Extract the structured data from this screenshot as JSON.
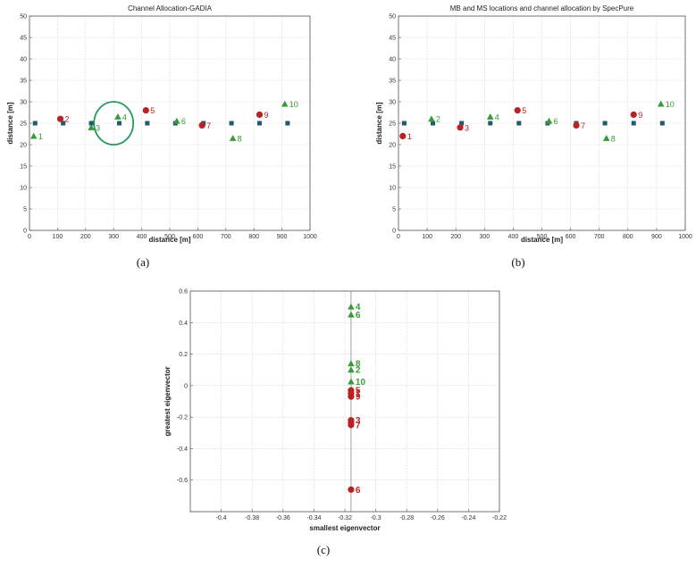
{
  "chart_data": [
    {
      "type": "scatter",
      "panel": "a",
      "caption": "(a)",
      "title": "Channel Allocation-GADIA",
      "xlabel": "distance [m]",
      "ylabel": "distance [m]",
      "xlim": [
        0,
        1000
      ],
      "ylim": [
        0,
        50
      ],
      "xticks": [
        0,
        100,
        200,
        300,
        400,
        500,
        600,
        700,
        800,
        900,
        1000
      ],
      "yticks": [
        0,
        5,
        10,
        15,
        20,
        25,
        30,
        35,
        40,
        45,
        50
      ],
      "grid": true,
      "base_stations": [
        {
          "x": 20,
          "y": 25
        },
        {
          "x": 120,
          "y": 25
        },
        {
          "x": 220,
          "y": 25
        },
        {
          "x": 320,
          "y": 25
        },
        {
          "x": 420,
          "y": 25
        },
        {
          "x": 520,
          "y": 25
        },
        {
          "x": 620,
          "y": 25
        },
        {
          "x": 720,
          "y": 25
        },
        {
          "x": 820,
          "y": 25
        },
        {
          "x": 920,
          "y": 25
        }
      ],
      "mobile_stations": [
        {
          "label": "1",
          "x": 15,
          "y": 22,
          "channel": "green"
        },
        {
          "label": "2",
          "x": 110,
          "y": 26,
          "channel": "red"
        },
        {
          "label": "3",
          "x": 220,
          "y": 24,
          "channel": "green"
        },
        {
          "label": "4",
          "x": 315,
          "y": 26.5,
          "channel": "green"
        },
        {
          "label": "5",
          "x": 415,
          "y": 28,
          "channel": "red"
        },
        {
          "label": "6",
          "x": 525,
          "y": 25.5,
          "channel": "green"
        },
        {
          "label": "7",
          "x": 615,
          "y": 24.5,
          "channel": "red"
        },
        {
          "label": "8",
          "x": 725,
          "y": 21.5,
          "channel": "green"
        },
        {
          "label": "9",
          "x": 820,
          "y": 27,
          "channel": "red"
        },
        {
          "label": "10",
          "x": 910,
          "y": 29.5,
          "channel": "green"
        }
      ],
      "highlight_ellipse": {
        "center_x": 300,
        "center_y": 25,
        "semi_x": 70,
        "semi_y": 5
      }
    },
    {
      "type": "scatter",
      "panel": "b",
      "caption": "(b)",
      "title": "MB and MS locations and channel allocation by SpecPure",
      "xlabel": "distance [m]",
      "ylabel": "distance [m]",
      "xlim": [
        0,
        1000
      ],
      "ylim": [
        0,
        50
      ],
      "xticks": [
        0,
        100,
        200,
        300,
        400,
        500,
        600,
        700,
        800,
        900,
        1000
      ],
      "yticks": [
        0,
        5,
        10,
        15,
        20,
        25,
        30,
        35,
        40,
        45,
        50
      ],
      "grid": true,
      "base_stations": [
        {
          "x": 20,
          "y": 25
        },
        {
          "x": 120,
          "y": 25
        },
        {
          "x": 220,
          "y": 25
        },
        {
          "x": 320,
          "y": 25
        },
        {
          "x": 420,
          "y": 25
        },
        {
          "x": 520,
          "y": 25
        },
        {
          "x": 620,
          "y": 25
        },
        {
          "x": 720,
          "y": 25
        },
        {
          "x": 820,
          "y": 25
        },
        {
          "x": 920,
          "y": 25
        }
      ],
      "mobile_stations": [
        {
          "label": "1",
          "x": 15,
          "y": 22,
          "channel": "red"
        },
        {
          "label": "2",
          "x": 115,
          "y": 26,
          "channel": "green"
        },
        {
          "label": "3",
          "x": 215,
          "y": 24,
          "channel": "red"
        },
        {
          "label": "4",
          "x": 320,
          "y": 26.5,
          "channel": "green"
        },
        {
          "label": "5",
          "x": 415,
          "y": 28,
          "channel": "red"
        },
        {
          "label": "6",
          "x": 525,
          "y": 25.5,
          "channel": "green"
        },
        {
          "label": "7",
          "x": 620,
          "y": 24.5,
          "channel": "red"
        },
        {
          "label": "8",
          "x": 725,
          "y": 21.5,
          "channel": "green"
        },
        {
          "label": "9",
          "x": 820,
          "y": 27,
          "channel": "red"
        },
        {
          "label": "10",
          "x": 915,
          "y": 29.5,
          "channel": "green"
        }
      ]
    },
    {
      "type": "scatter",
      "panel": "c",
      "caption": "(c)",
      "title": "",
      "xlabel": "smallest eigenvector",
      "ylabel": "greatest eigenvector",
      "xlim": [
        -0.42,
        -0.22
      ],
      "ylim": [
        -0.8,
        0.6
      ],
      "xticks": [
        -0.4,
        -0.38,
        -0.36,
        -0.34,
        -0.32,
        -0.3,
        -0.28,
        -0.26,
        -0.24,
        -0.22
      ],
      "xtick_labels": [
        "-0.4",
        "-0.38",
        "-0.36",
        "-0.34",
        "-0.32",
        "-0.3",
        "-0.28",
        "-0.26",
        "-0.24",
        "-0.22"
      ],
      "yticks": [
        -0.8,
        -0.6,
        -0.4,
        -0.2,
        0,
        0.2,
        0.4,
        0.6
      ],
      "ytick_labels": [
        "",
        "-0.6",
        "-0.4",
        "-0.2",
        "0",
        "0.2",
        "0.4",
        "0.6"
      ],
      "grid": true,
      "reference_x": -0.316,
      "points": [
        {
          "label": "4",
          "x": -0.316,
          "y": 0.5,
          "channel": "green"
        },
        {
          "label": "6",
          "x": -0.316,
          "y": 0.45,
          "channel": "green"
        },
        {
          "label": "8",
          "x": -0.316,
          "y": 0.14,
          "channel": "green"
        },
        {
          "label": "2",
          "x": -0.316,
          "y": 0.1,
          "channel": "green"
        },
        {
          "label": "10",
          "x": -0.316,
          "y": 0.025,
          "channel": "green"
        },
        {
          "label": "5",
          "x": -0.316,
          "y": -0.03,
          "channel": "red"
        },
        {
          "label": "1",
          "x": -0.316,
          "y": -0.05,
          "channel": "red"
        },
        {
          "label": "9",
          "x": -0.316,
          "y": -0.07,
          "channel": "red"
        },
        {
          "label": "3",
          "x": -0.316,
          "y": -0.22,
          "channel": "red"
        },
        {
          "label": "",
          "x": -0.316,
          "y": -0.235,
          "channel": "red"
        },
        {
          "label": "7",
          "x": -0.316,
          "y": -0.25,
          "channel": "red"
        },
        {
          "label": "6",
          "x": -0.316,
          "y": -0.66,
          "channel": "red"
        }
      ]
    }
  ],
  "colors": {
    "base_station": "#1f5a6e",
    "green": "#3a9a3a",
    "red": "#b82222",
    "grid": "#cfcfcf",
    "axis": "#555555",
    "ellipse": "#2a9a5a"
  }
}
